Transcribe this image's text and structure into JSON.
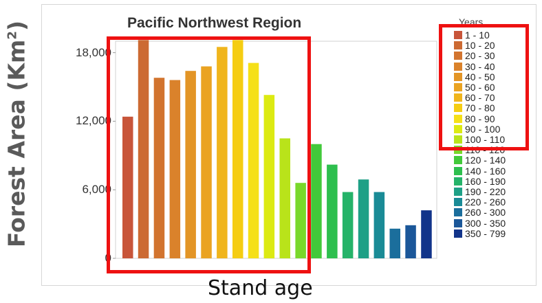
{
  "chart_data": {
    "type": "bar",
    "title": "Pacific Northwest Region",
    "ylabel": "Forest Area (Km²)",
    "ylabel_main": "Forest Area (Km",
    "ylabel_sup": "2",
    "ylabel_close": ")",
    "xlabel": "Stand age",
    "legend_title": "Years",
    "ylim": [
      0,
      19000
    ],
    "yticks": [
      0,
      6000,
      12000,
      18000
    ],
    "ytick_labels": [
      "0",
      "6,000",
      "12,000",
      "18,000"
    ],
    "categories": [
      "1 - 10",
      "10 - 20",
      "20 - 30",
      "30 - 40",
      "40 - 50",
      "50 - 60",
      "60 - 70",
      "70 - 80",
      "80 - 90",
      "90 - 100",
      "100 - 110",
      "110 - 120",
      "120 - 140",
      "140 - 160",
      "160 - 190",
      "190 - 220",
      "220 - 260",
      "260 - 300",
      "300 - 350",
      "350 - 799"
    ],
    "values": [
      12400,
      19100,
      15800,
      15600,
      16400,
      16800,
      18500,
      19100,
      17100,
      14300,
      10500,
      6600,
      10000,
      8200,
      5800,
      6900,
      5800,
      2600,
      2900,
      4200
    ],
    "colors": [
      "#c8553a",
      "#cc6a33",
      "#d2742f",
      "#da822b",
      "#e39526",
      "#eaa322",
      "#f0b51c",
      "#f5cd12",
      "#f5e018",
      "#dcea12",
      "#b9e31a",
      "#79d82a",
      "#42c93a",
      "#2ebf4e",
      "#25b369",
      "#1ea086",
      "#1a8b96",
      "#1b6e9c",
      "#1b5799",
      "#12348a"
    ],
    "grid": false,
    "legend_position": "right",
    "highlights": 2
  }
}
